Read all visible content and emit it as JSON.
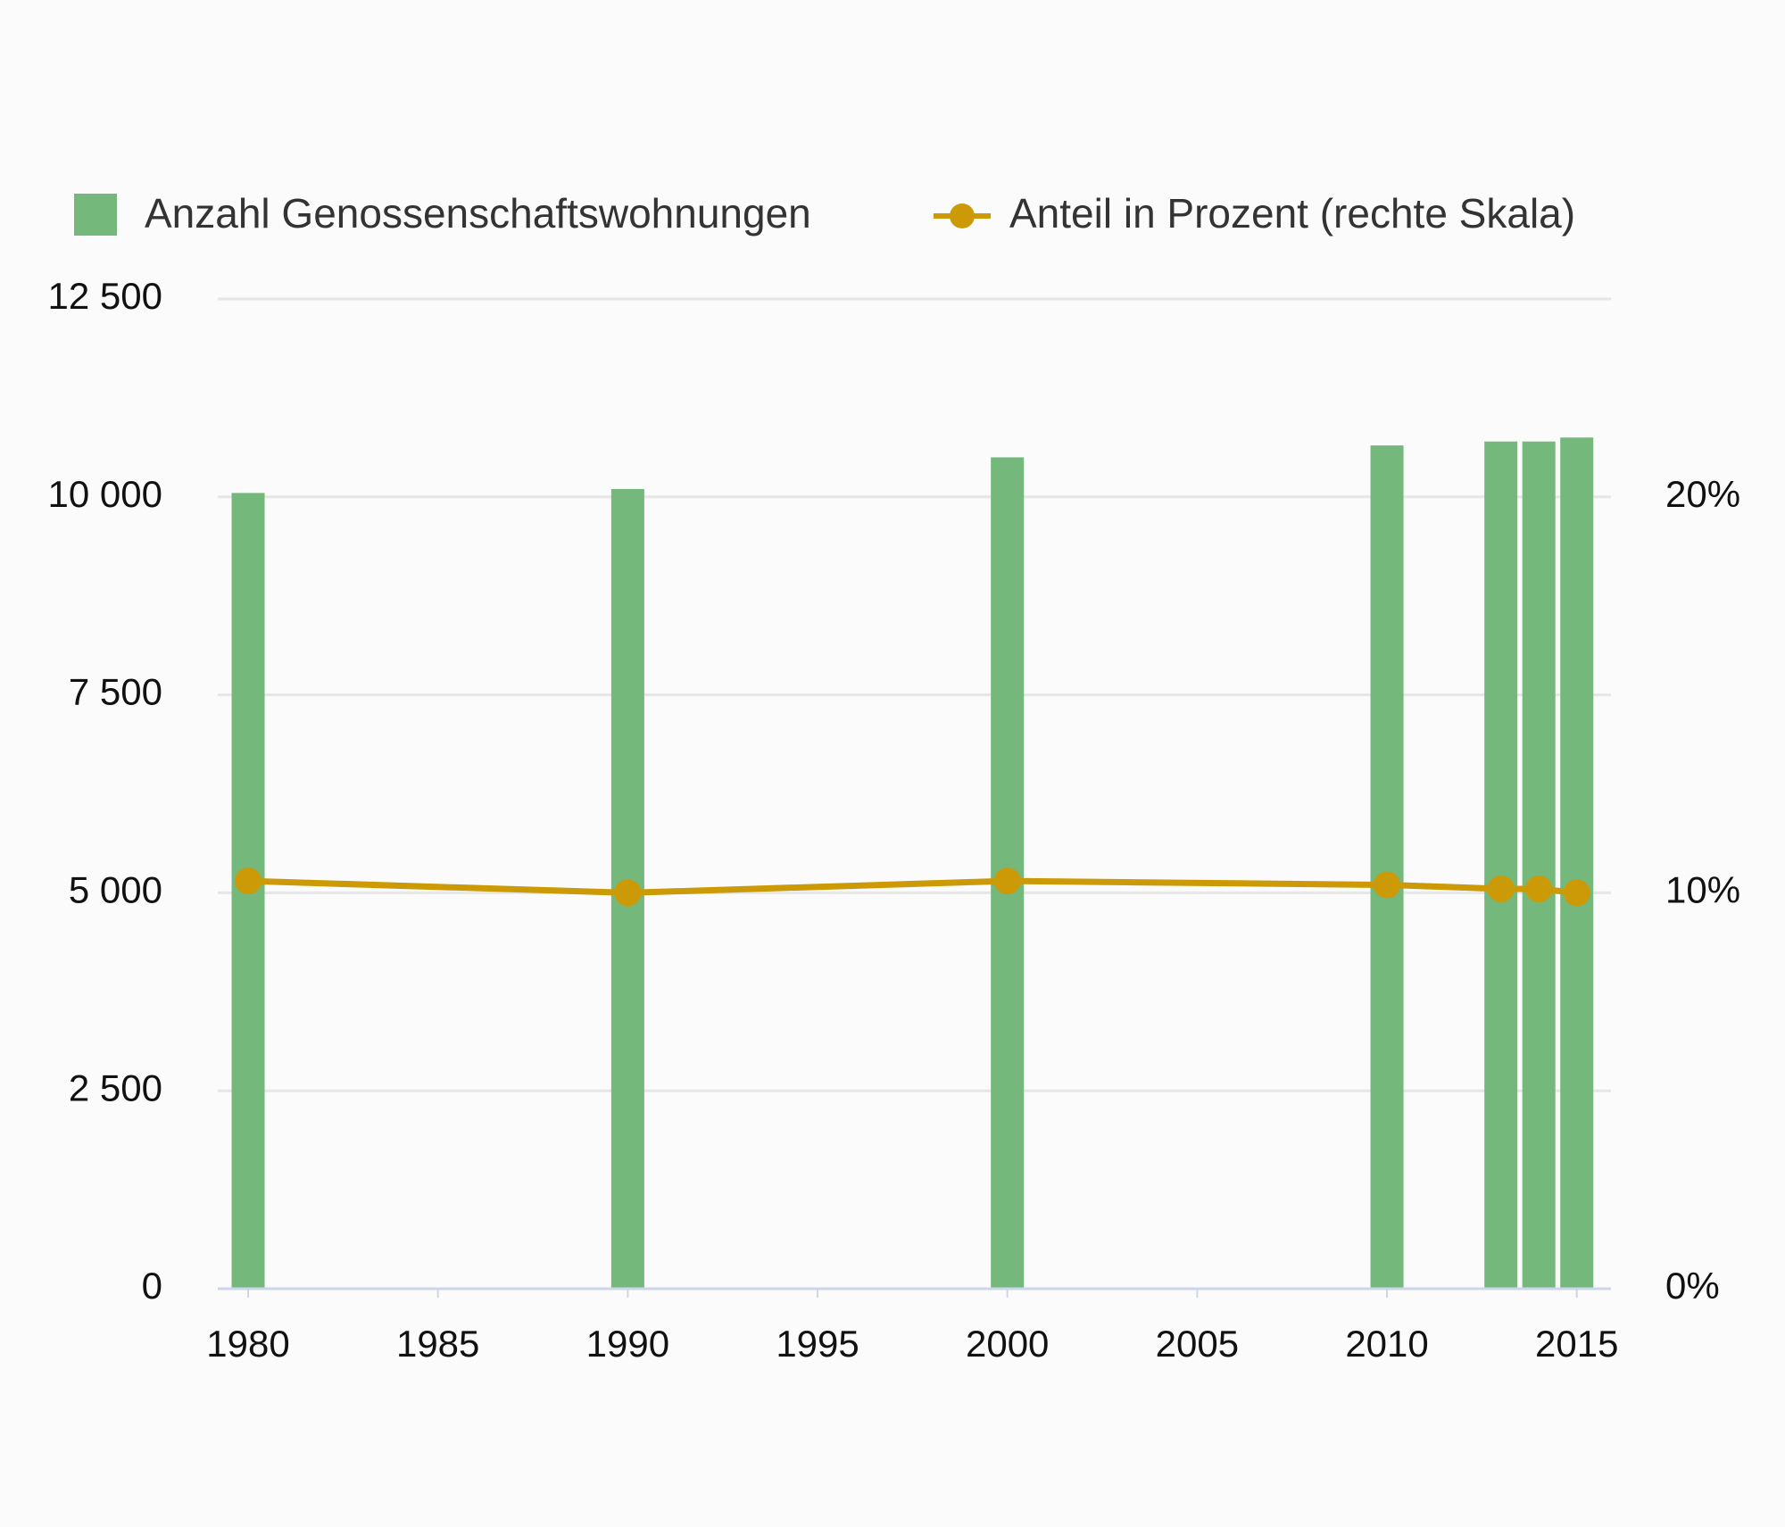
{
  "chart_data": {
    "type": "bar",
    "x": [
      1980,
      1990,
      2000,
      2010,
      2013,
      2014,
      2015
    ],
    "series": [
      {
        "name": "Anzahl Genossenschaftswohnungen",
        "type": "bar",
        "color": "#74b87c",
        "values": [
          10050,
          10100,
          10500,
          10650,
          10700,
          10700,
          10750
        ]
      },
      {
        "name": "Anteil in Prozent (rechte Skala)",
        "type": "line",
        "axis": "y2",
        "color": "#cc9a06",
        "values": [
          10.3,
          10.0,
          10.3,
          10.2,
          10.1,
          10.1,
          10.0
        ]
      }
    ],
    "xlim": [
      1979.2,
      2015.9
    ],
    "xticks": [
      1980,
      1985,
      1990,
      1995,
      2000,
      2005,
      2010,
      2015
    ],
    "ylim": [
      0,
      12500
    ],
    "yticks": [
      0,
      {
        "value": 2500,
        "label": "2 500"
      },
      {
        "value": 5000,
        "label": "5 000"
      },
      {
        "value": 7500,
        "label": "7 500"
      },
      {
        "value": 10000,
        "label": "10 000"
      },
      {
        "value": 12500,
        "label": "12 500"
      }
    ],
    "y2lim": [
      0,
      25
    ],
    "y2ticks": [
      {
        "value": 0,
        "label": "0%"
      },
      {
        "value": 10,
        "label": "10%"
      },
      {
        "value": 20,
        "label": "20%"
      }
    ],
    "grid": true
  }
}
